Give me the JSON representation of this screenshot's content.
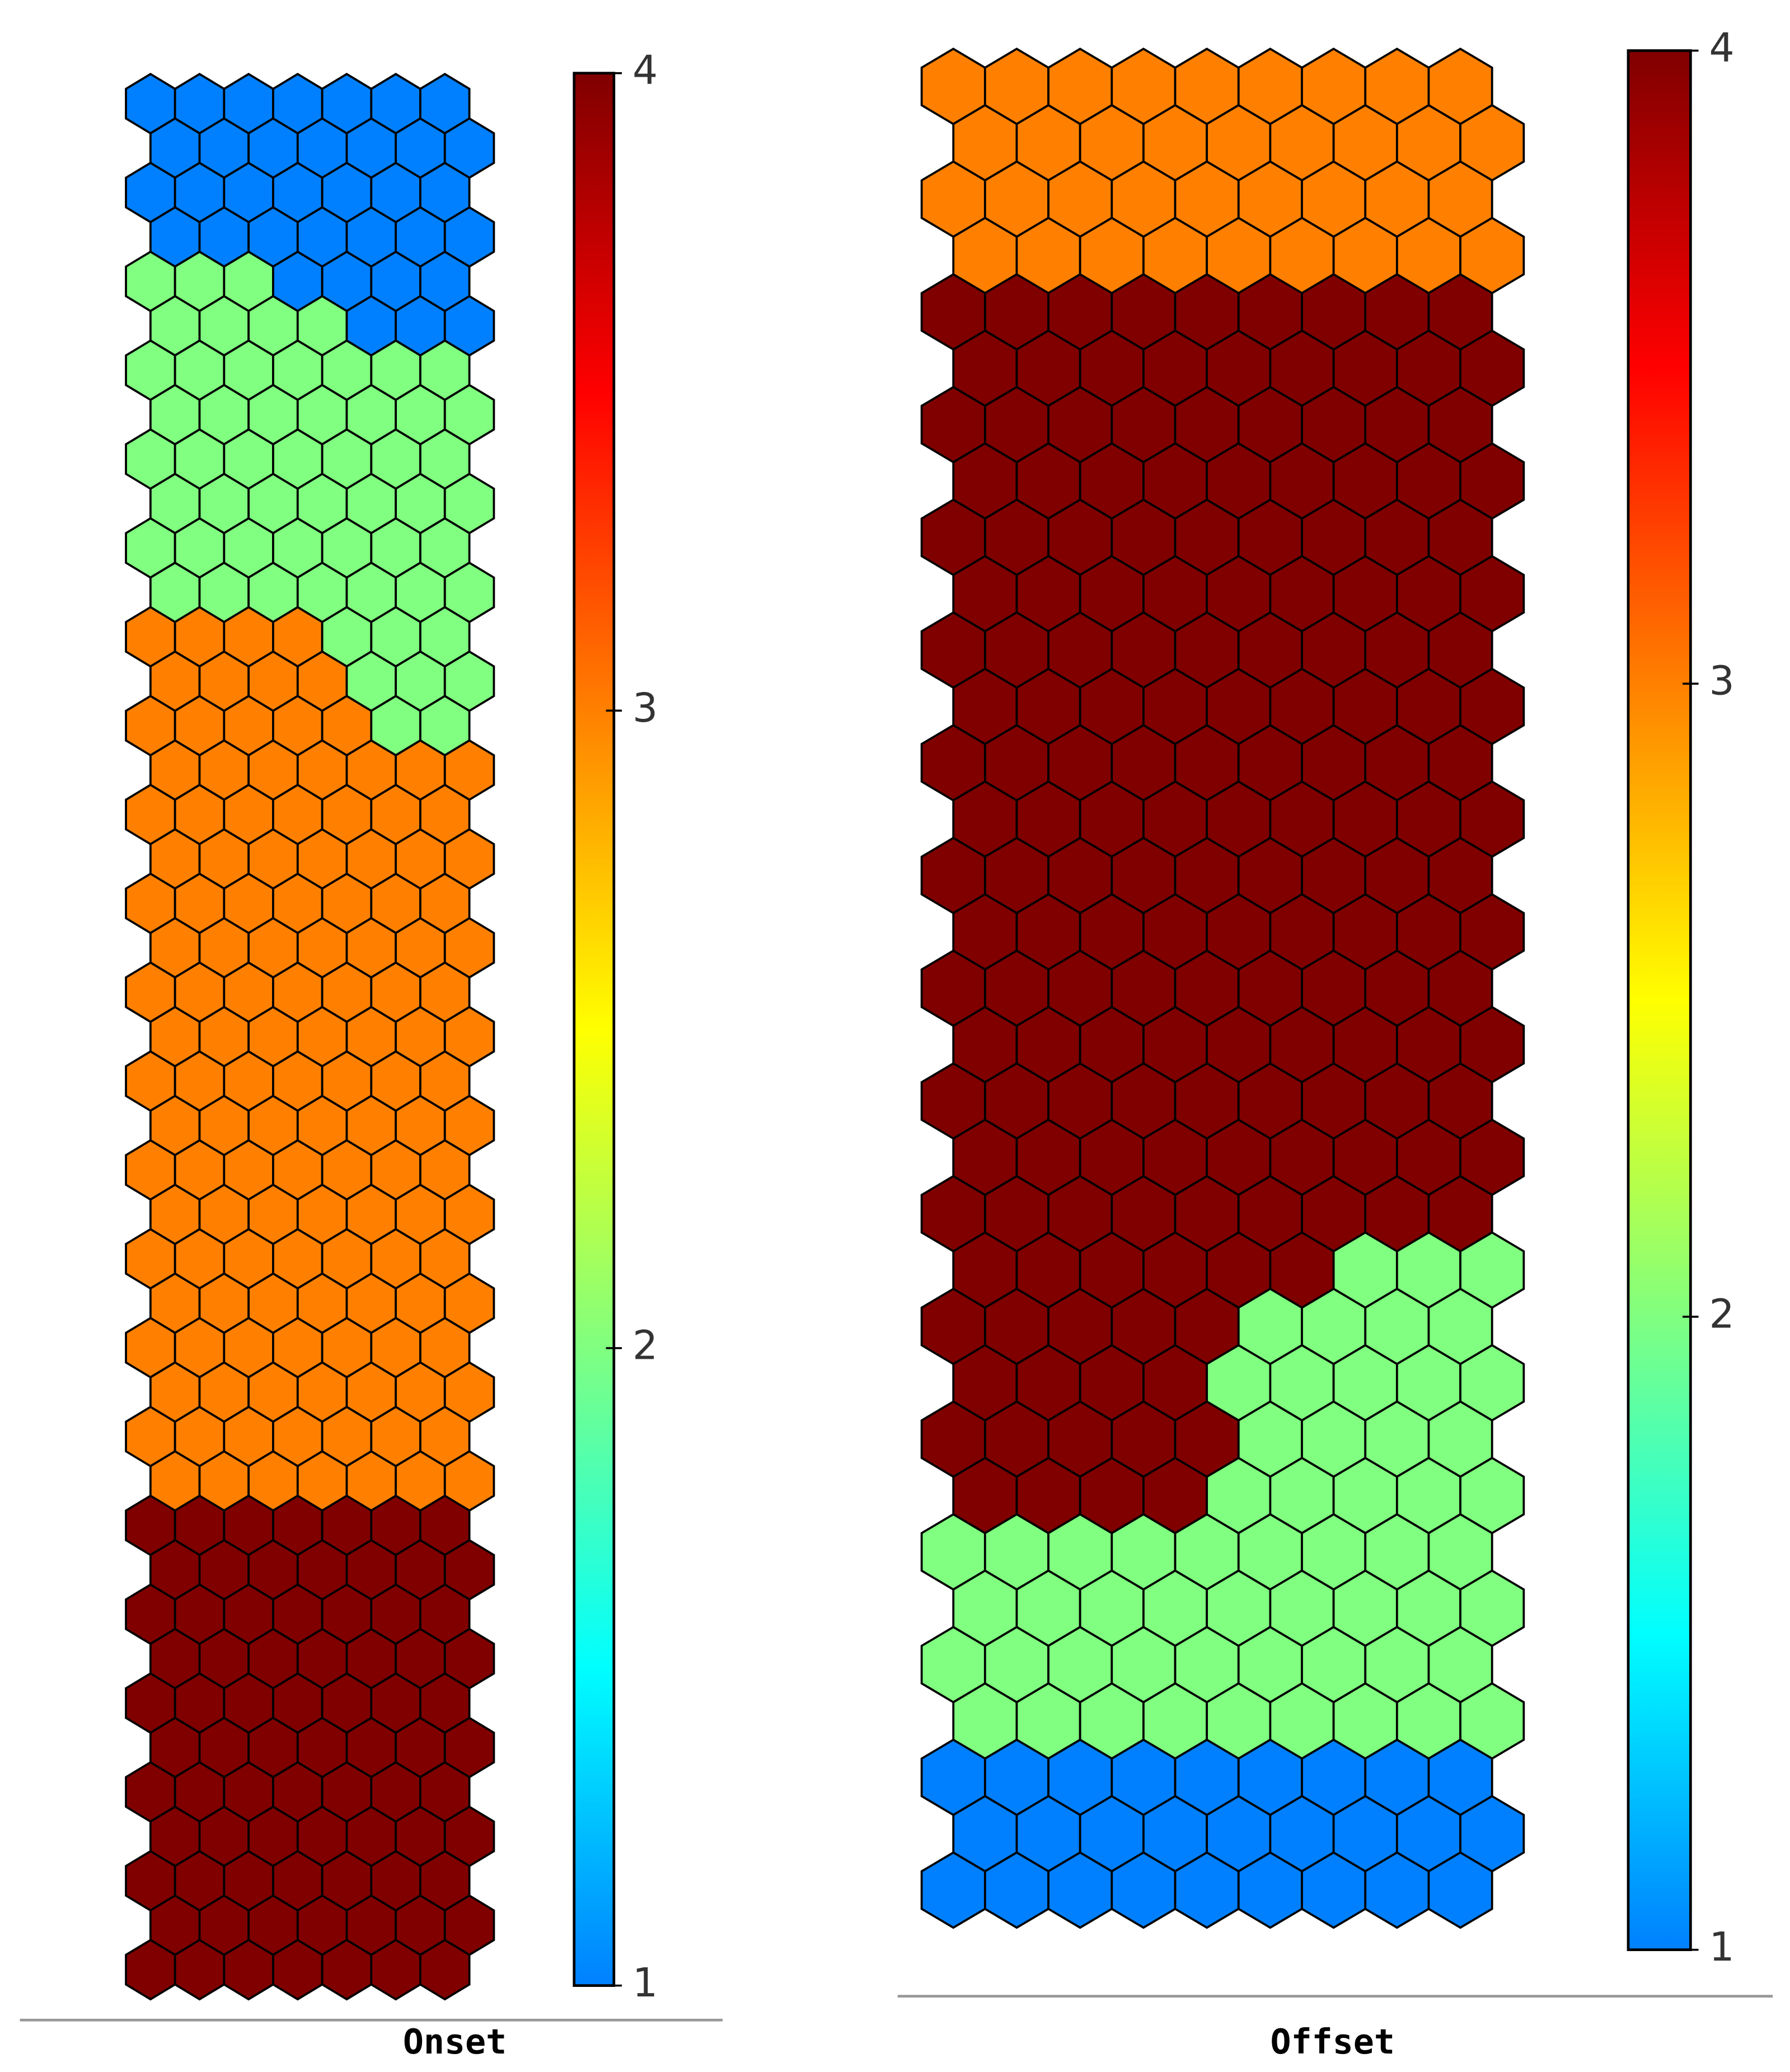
{
  "chart_data": [
    {
      "type": "hexmap",
      "xlabel": "Onset",
      "clim": [
        1,
        4
      ],
      "cticks": [
        1,
        2,
        3,
        4
      ],
      "colorscale": [
        "#0080ff",
        "#00ffff",
        "#80ff80",
        "#ffff00",
        "#ff8000",
        "#ff0000",
        "#800000"
      ],
      "values": [
        [
          1,
          1,
          1,
          1,
          1,
          1,
          1
        ],
        [
          1,
          1,
          1,
          1,
          1,
          1,
          1
        ],
        [
          1,
          1,
          1,
          1,
          1,
          1,
          1
        ],
        [
          1,
          1,
          1,
          1,
          1,
          1,
          1
        ],
        [
          2,
          2,
          2,
          1,
          1,
          1,
          1
        ],
        [
          2,
          2,
          2,
          2,
          1,
          1,
          1
        ],
        [
          2,
          2,
          2,
          2,
          2,
          2,
          2
        ],
        [
          2,
          2,
          2,
          2,
          2,
          2,
          2
        ],
        [
          2,
          2,
          2,
          2,
          2,
          2,
          2
        ],
        [
          2,
          2,
          2,
          2,
          2,
          2,
          2
        ],
        [
          2,
          2,
          2,
          2,
          2,
          2,
          2
        ],
        [
          2,
          2,
          2,
          2,
          2,
          2,
          2
        ],
        [
          3,
          3,
          3,
          3,
          2,
          2,
          2
        ],
        [
          3,
          3,
          3,
          3,
          2,
          2,
          2
        ],
        [
          3,
          3,
          3,
          3,
          3,
          2,
          2
        ],
        [
          3,
          3,
          3,
          3,
          3,
          3,
          3
        ],
        [
          3,
          3,
          3,
          3,
          3,
          3,
          3
        ],
        [
          3,
          3,
          3,
          3,
          3,
          3,
          3
        ],
        [
          3,
          3,
          3,
          3,
          3,
          3,
          3
        ],
        [
          3,
          3,
          3,
          3,
          3,
          3,
          3
        ],
        [
          3,
          3,
          3,
          3,
          3,
          3,
          3
        ],
        [
          3,
          3,
          3,
          3,
          3,
          3,
          3
        ],
        [
          3,
          3,
          3,
          3,
          3,
          3,
          3
        ],
        [
          3,
          3,
          3,
          3,
          3,
          3,
          3
        ],
        [
          3,
          3,
          3,
          3,
          3,
          3,
          3
        ],
        [
          3,
          3,
          3,
          3,
          3,
          3,
          3
        ],
        [
          3,
          3,
          3,
          3,
          3,
          3,
          3
        ],
        [
          3,
          3,
          3,
          3,
          3,
          3,
          3
        ],
        [
          3,
          3,
          3,
          3,
          3,
          3,
          3
        ],
        [
          3,
          3,
          3,
          3,
          3,
          3,
          3
        ],
        [
          3,
          3,
          3,
          3,
          3,
          3,
          3
        ],
        [
          3,
          3,
          3,
          3,
          3,
          3,
          3
        ],
        [
          4,
          4,
          4,
          4,
          4,
          4,
          4
        ],
        [
          4,
          4,
          4,
          4,
          4,
          4,
          4
        ],
        [
          4,
          4,
          4,
          4,
          4,
          4,
          4
        ],
        [
          4,
          4,
          4,
          4,
          4,
          4,
          4
        ],
        [
          4,
          4,
          4,
          4,
          4,
          4,
          4
        ],
        [
          4,
          4,
          4,
          4,
          4,
          4,
          4
        ],
        [
          4,
          4,
          4,
          4,
          4,
          4,
          4
        ],
        [
          4,
          4,
          4,
          4,
          4,
          4,
          4
        ],
        [
          4,
          4,
          4,
          4,
          4,
          4,
          4
        ],
        [
          4,
          4,
          4,
          4,
          4,
          4,
          4
        ],
        [
          4,
          4,
          4,
          4,
          4,
          4,
          4
        ]
      ]
    },
    {
      "type": "hexmap",
      "xlabel": "Offset",
      "clim": [
        1,
        4
      ],
      "cticks": [
        1,
        2,
        3,
        4
      ],
      "colorscale": [
        "#0080ff",
        "#00ffff",
        "#80ff80",
        "#ffff00",
        "#ff8000",
        "#ff0000",
        "#800000"
      ],
      "values": [
        [
          3,
          3,
          3,
          3,
          3,
          3,
          3,
          3,
          3
        ],
        [
          3,
          3,
          3,
          3,
          3,
          3,
          3,
          3,
          3
        ],
        [
          3,
          3,
          3,
          3,
          3,
          3,
          3,
          3,
          3
        ],
        [
          3,
          3,
          3,
          3,
          3,
          3,
          3,
          3,
          3
        ],
        [
          4,
          4,
          4,
          4,
          4,
          4,
          4,
          4,
          4
        ],
        [
          4,
          4,
          4,
          4,
          4,
          4,
          4,
          4,
          4
        ],
        [
          4,
          4,
          4,
          4,
          4,
          4,
          4,
          4,
          4
        ],
        [
          4,
          4,
          4,
          4,
          4,
          4,
          4,
          4,
          4
        ],
        [
          4,
          4,
          4,
          4,
          4,
          4,
          4,
          4,
          4
        ],
        [
          4,
          4,
          4,
          4,
          4,
          4,
          4,
          4,
          4
        ],
        [
          4,
          4,
          4,
          4,
          4,
          4,
          4,
          4,
          4
        ],
        [
          4,
          4,
          4,
          4,
          4,
          4,
          4,
          4,
          4
        ],
        [
          4,
          4,
          4,
          4,
          4,
          4,
          4,
          4,
          4
        ],
        [
          4,
          4,
          4,
          4,
          4,
          4,
          4,
          4,
          4
        ],
        [
          4,
          4,
          4,
          4,
          4,
          4,
          4,
          4,
          4
        ],
        [
          4,
          4,
          4,
          4,
          4,
          4,
          4,
          4,
          4
        ],
        [
          4,
          4,
          4,
          4,
          4,
          4,
          4,
          4,
          4
        ],
        [
          4,
          4,
          4,
          4,
          4,
          4,
          4,
          4,
          4
        ],
        [
          4,
          4,
          4,
          4,
          4,
          4,
          4,
          4,
          4
        ],
        [
          4,
          4,
          4,
          4,
          4,
          4,
          4,
          4,
          4
        ],
        [
          4,
          4,
          4,
          4,
          4,
          4,
          4,
          4,
          4
        ],
        [
          4,
          4,
          4,
          4,
          4,
          4,
          2,
          2,
          2
        ],
        [
          4,
          4,
          4,
          4,
          4,
          2,
          2,
          2,
          2
        ],
        [
          4,
          4,
          4,
          4,
          2,
          2,
          2,
          2,
          2
        ],
        [
          4,
          4,
          4,
          4,
          4,
          2,
          2,
          2,
          2
        ],
        [
          4,
          4,
          4,
          4,
          2,
          2,
          2,
          2,
          2
        ],
        [
          2,
          2,
          2,
          2,
          2,
          2,
          2,
          2,
          2
        ],
        [
          2,
          2,
          2,
          2,
          2,
          2,
          2,
          2,
          2
        ],
        [
          2,
          2,
          2,
          2,
          2,
          2,
          2,
          2,
          2
        ],
        [
          2,
          2,
          2,
          2,
          2,
          2,
          2,
          2,
          2
        ],
        [
          1,
          1,
          1,
          1,
          1,
          1,
          1,
          1,
          1
        ],
        [
          1,
          1,
          1,
          1,
          1,
          1,
          1,
          1,
          1
        ],
        [
          1,
          1,
          1,
          1,
          1,
          1,
          1,
          1,
          1
        ]
      ]
    }
  ]
}
